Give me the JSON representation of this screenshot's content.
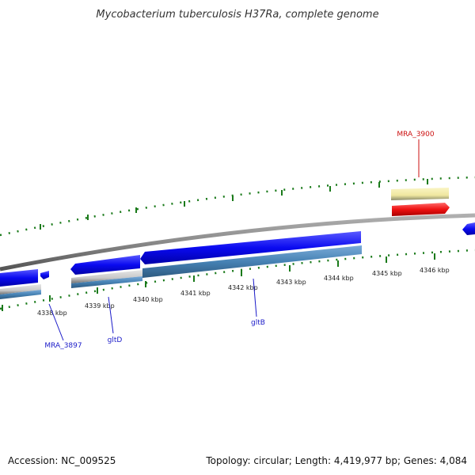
{
  "title": "Mycobacterium tuberculosis H37Ra, complete genome",
  "footer": {
    "accession": "Accession: NC_009525",
    "summary": "Topology: circular; Length: 4,419,977 bp; Genes: 4,084"
  },
  "scale_labels": [
    "4338 kbp",
    "4339 kbp",
    "4340 kbp",
    "4341 kbp",
    "4342 kbp",
    "4343 kbp",
    "4344 kbp",
    "4345 kbp",
    "4346 kbp"
  ],
  "gene_labels": {
    "mra_3900": "MRA_3900",
    "mra_3897": "MRA_3897",
    "gltd": "gltD",
    "gltb": "gltB"
  },
  "colors": {
    "backbone": "#8a8a8a",
    "tick": "#1a7a1a",
    "cds_forward": "#0a0af0",
    "cds_reverse": "#4682b4",
    "rrna_red": "#ee1111",
    "pale_yellow": "#f0e8a0",
    "grey_feature": "#c8c8c8",
    "label_blue": "#1a1ac8",
    "label_red": "#cc1111"
  }
}
